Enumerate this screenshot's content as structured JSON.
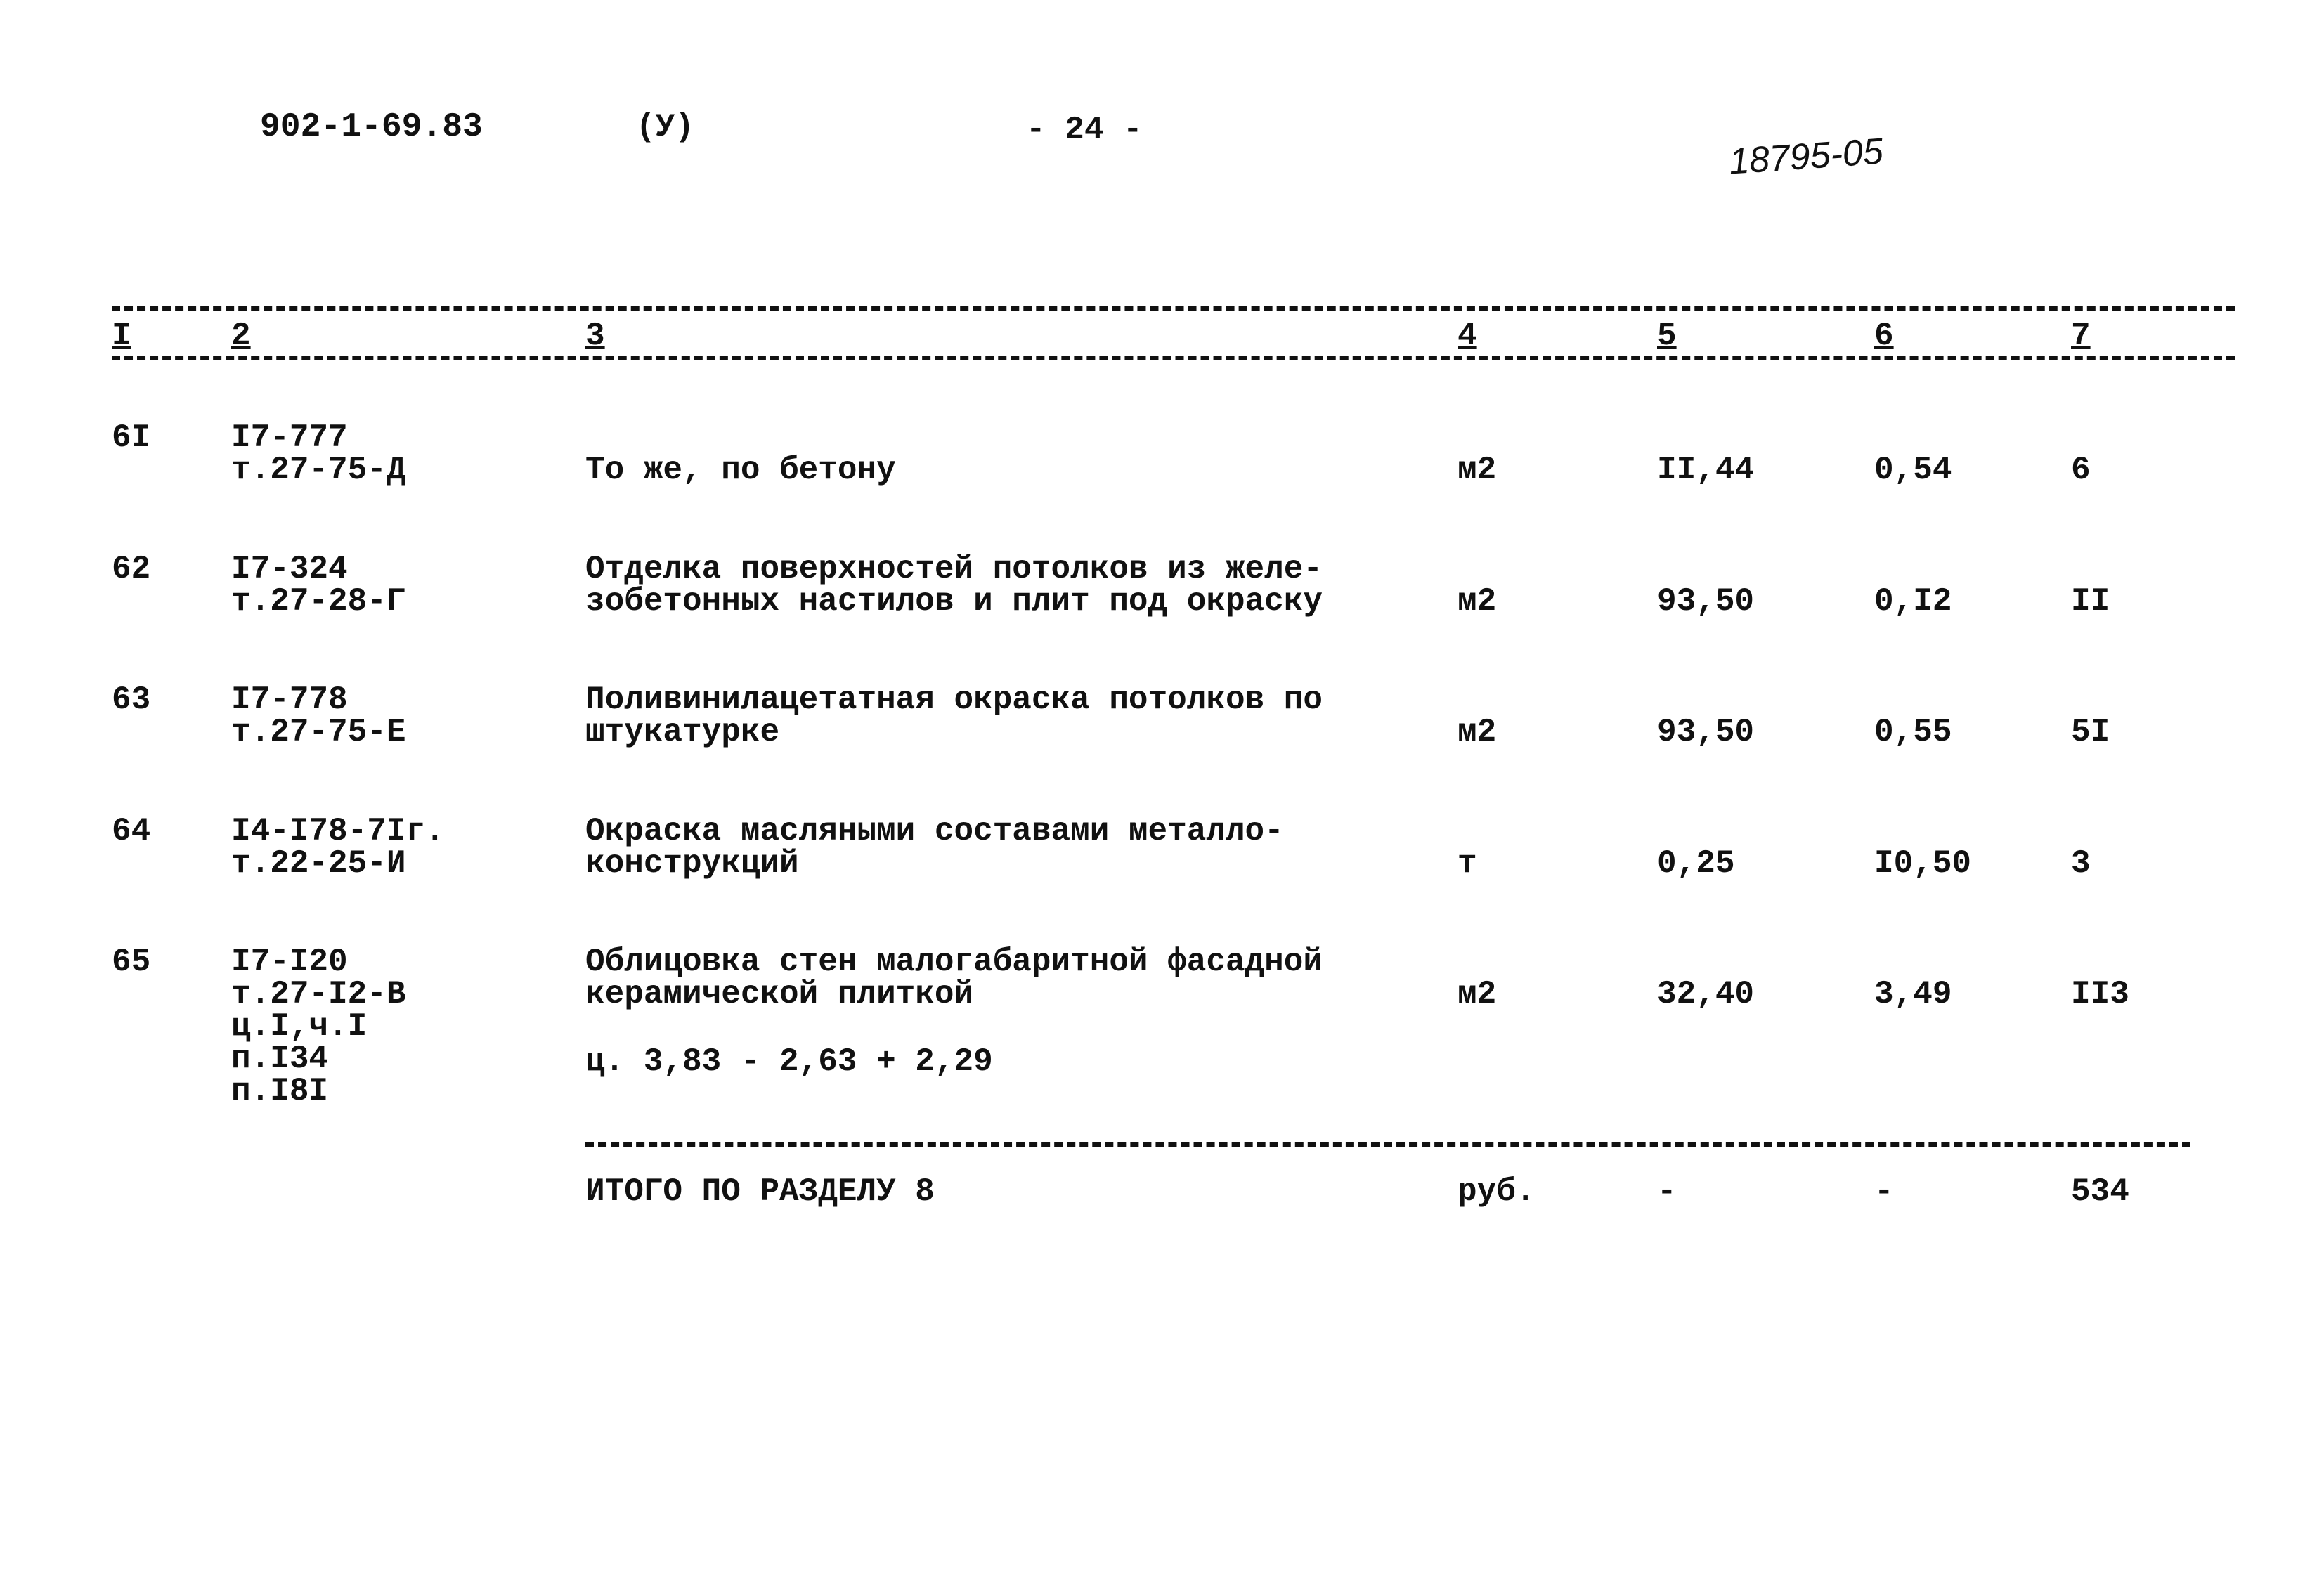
{
  "header": {
    "doc_code": "902-1-69.83",
    "mark": "(У)",
    "page": "- 24 -",
    "inventory_no": "18795-05"
  },
  "table": {
    "columns": [
      "I",
      "2",
      "3",
      "4",
      "5",
      "6",
      "7"
    ],
    "rows": [
      {
        "n": "6I",
        "code": "I7-777\nт.27-75-Д",
        "desc": "То же, по бетону",
        "unit": "м2",
        "qty": "II,44",
        "price": "0,54",
        "total": "6"
      },
      {
        "n": "62",
        "code": "I7-324\nт.27-28-Г",
        "desc": "Отделка поверхностей потолков из желе-\nзобетонных настилов и плит под окраску",
        "unit": "м2",
        "qty": "93,50",
        "price": "0,I2",
        "total": "II"
      },
      {
        "n": "63",
        "code": "I7-778\nт.27-75-Е",
        "desc": "Поливинилацетатная окраска потолков по\nштукатурке",
        "unit": "м2",
        "qty": "93,50",
        "price": "0,55",
        "total": "5I"
      },
      {
        "n": "64",
        "code": "I4-I78-7Iг.\nт.22-25-И",
        "desc": "Окраска масляными составами металло-\nконструкций",
        "unit": "т",
        "qty": "0,25",
        "price": "I0,50",
        "total": "3"
      },
      {
        "n": "65",
        "code": "I7-I20\nт.27-I2-В\nц.I,ч.I\nп.I34\nп.I8I",
        "desc": "Облицовка стен малогабаритной фасадной\nкерамической плиткой",
        "unit": "м2",
        "qty": "32,40",
        "price": "3,49",
        "total": "II3"
      }
    ],
    "row65_note": "ц. 3,83 - 2,63 + 2,29",
    "total_row": {
      "label": "ИТОГО ПО РАЗДЕЛУ 8",
      "unit": "руб.",
      "qty": "-",
      "price": "-",
      "total": "534"
    }
  }
}
